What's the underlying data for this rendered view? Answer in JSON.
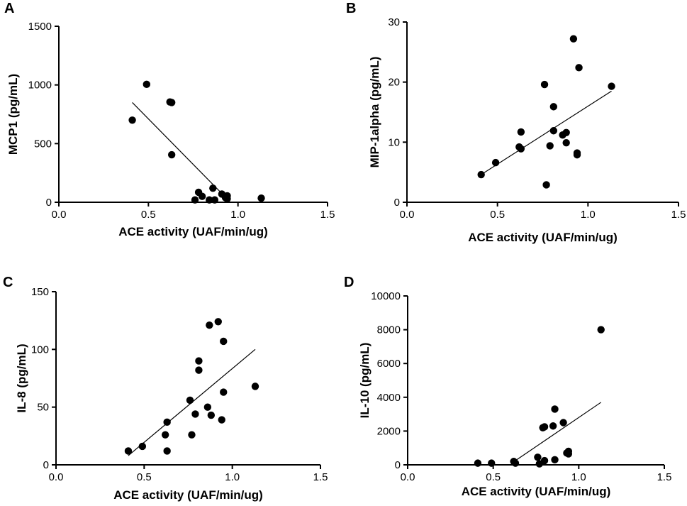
{
  "chart_data": [
    {
      "type": "scatter",
      "panel": "A",
      "xlabel": "ACE activity (UAF/min/ug)",
      "ylabel": "MCP1 (pg/mL)",
      "xlim": [
        0,
        1.5
      ],
      "ylim": [
        0,
        1500
      ],
      "xticks": [
        0,
        0.5,
        1.0,
        1.5
      ],
      "xtick_labels": [
        "0.0",
        "0.5",
        "1.0",
        "1.5"
      ],
      "yticks": [
        0,
        500,
        1000,
        1500
      ],
      "ytick_labels": [
        "0",
        "500",
        "1000",
        "1500"
      ],
      "points": [
        [
          0.41,
          700
        ],
        [
          0.49,
          1005
        ],
        [
          0.62,
          855
        ],
        [
          0.63,
          850
        ],
        [
          0.63,
          405
        ],
        [
          0.76,
          20
        ],
        [
          0.78,
          85
        ],
        [
          0.8,
          50
        ],
        [
          0.84,
          20
        ],
        [
          0.86,
          120
        ],
        [
          0.87,
          20
        ],
        [
          0.91,
          70
        ],
        [
          0.93,
          40
        ],
        [
          0.94,
          55
        ],
        [
          0.94,
          30
        ],
        [
          1.13,
          35
        ]
      ],
      "fit_line": [
        [
          0.41,
          850
        ],
        [
          0.9,
          90
        ]
      ]
    },
    {
      "type": "scatter",
      "panel": "B",
      "xlabel": "ACE activity (UAF/min/ug)",
      "ylabel": "MIP-1alpha (pg/mL)",
      "xlim": [
        0,
        1.5
      ],
      "ylim": [
        0,
        30
      ],
      "xticks": [
        0,
        0.5,
        1.0,
        1.5
      ],
      "xtick_labels": [
        "0.0",
        "0.5",
        "1.0",
        "1.5"
      ],
      "yticks": [
        0,
        10,
        20,
        30
      ],
      "ytick_labels": [
        "0",
        "10",
        "20",
        "30"
      ],
      "points": [
        [
          0.41,
          4.6
        ],
        [
          0.49,
          6.6
        ],
        [
          0.62,
          9.2
        ],
        [
          0.63,
          8.9
        ],
        [
          0.63,
          11.7
        ],
        [
          0.76,
          19.6
        ],
        [
          0.77,
          2.9
        ],
        [
          0.79,
          9.4
        ],
        [
          0.81,
          11.9
        ],
        [
          0.81,
          15.9
        ],
        [
          0.86,
          11.2
        ],
        [
          0.88,
          11.6
        ],
        [
          0.88,
          9.9
        ],
        [
          0.92,
          27.2
        ],
        [
          0.94,
          8.2
        ],
        [
          0.94,
          7.9
        ],
        [
          0.95,
          22.4
        ],
        [
          1.13,
          19.3
        ]
      ],
      "fit_line": [
        [
          0.41,
          4.6
        ],
        [
          1.13,
          18.5
        ]
      ]
    },
    {
      "type": "scatter",
      "panel": "C",
      "xlabel": "ACE activity (UAF/min/ug)",
      "ylabel": "IL-8 (pg/mL)",
      "xlim": [
        0,
        1.5
      ],
      "ylim": [
        0,
        150
      ],
      "xticks": [
        0,
        0.5,
        1.0,
        1.5
      ],
      "xtick_labels": [
        "0.0",
        "0.5",
        "1.0",
        "1.5"
      ],
      "yticks": [
        0,
        50,
        100,
        150
      ],
      "ytick_labels": [
        "0",
        "50",
        "100",
        "150"
      ],
      "points": [
        [
          0.41,
          12
        ],
        [
          0.49,
          16
        ],
        [
          0.62,
          26
        ],
        [
          0.63,
          37
        ],
        [
          0.63,
          12
        ],
        [
          0.76,
          56
        ],
        [
          0.77,
          26
        ],
        [
          0.79,
          44
        ],
        [
          0.81,
          82
        ],
        [
          0.81,
          90
        ],
        [
          0.86,
          50
        ],
        [
          0.87,
          121
        ],
        [
          0.88,
          43
        ],
        [
          0.92,
          124
        ],
        [
          0.94,
          39
        ],
        [
          0.95,
          63
        ],
        [
          0.95,
          107
        ],
        [
          1.13,
          68
        ]
      ],
      "fit_line": [
        [
          0.41,
          8
        ],
        [
          1.13,
          100
        ]
      ]
    },
    {
      "type": "scatter",
      "panel": "D",
      "xlabel": "ACE activity (UAF/min/ug)",
      "ylabel": "IL-10 (pg/mL)",
      "xlim": [
        0,
        1.5
      ],
      "ylim": [
        0,
        10000
      ],
      "xticks": [
        0,
        0.5,
        1.0,
        1.5
      ],
      "xtick_labels": [
        "0.0",
        "0.5",
        "1.0",
        "1.5"
      ],
      "yticks": [
        0,
        2000,
        4000,
        6000,
        8000,
        10000
      ],
      "ytick_labels": [
        "0",
        "2000",
        "4000",
        "6000",
        "8000",
        "10000"
      ],
      "points": [
        [
          0.41,
          100
        ],
        [
          0.49,
          100
        ],
        [
          0.62,
          200
        ],
        [
          0.63,
          100
        ],
        [
          0.76,
          450
        ],
        [
          0.77,
          60
        ],
        [
          0.79,
          2200
        ],
        [
          0.8,
          2250
        ],
        [
          0.8,
          250
        ],
        [
          0.85,
          2300
        ],
        [
          0.86,
          3300
        ],
        [
          0.86,
          300
        ],
        [
          0.91,
          2500
        ],
        [
          0.93,
          700
        ],
        [
          0.94,
          800
        ],
        [
          0.94,
          650
        ],
        [
          1.13,
          8000
        ]
      ],
      "fit_line": [
        [
          0.63,
          250
        ],
        [
          1.13,
          3700
        ]
      ]
    }
  ]
}
